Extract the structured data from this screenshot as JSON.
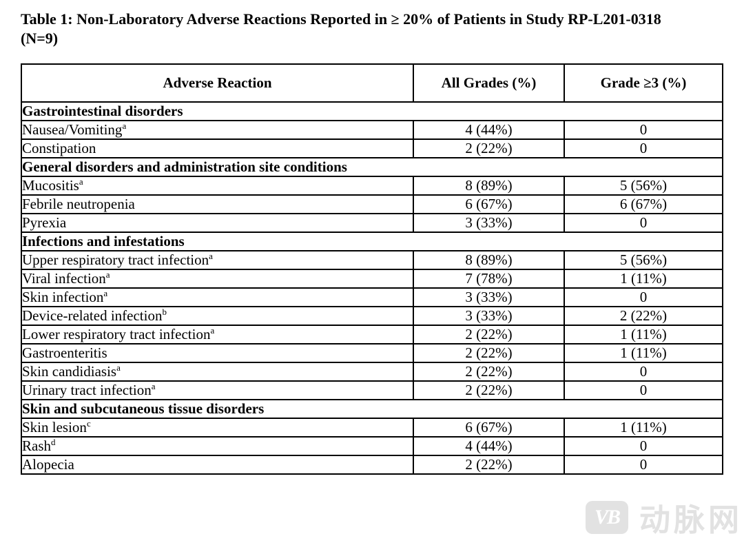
{
  "caption": {
    "line1": "Table 1: Non-Laboratory Adverse Reactions Reported in ≥ 20% of Patients in Study RP-L201-0318",
    "line2": "(N=9)"
  },
  "table": {
    "columns": [
      "Adverse Reaction",
      "All Grades (%)",
      "Grade ≥3 (%)"
    ],
    "rows": [
      {
        "type": "section",
        "label": "Gastrointestinal disorders"
      },
      {
        "type": "data",
        "label": "Nausea/Vomiting",
        "sup": "a",
        "all_grades": "4 (44%)",
        "grade_3_plus": "0"
      },
      {
        "type": "data",
        "label": "Constipation",
        "sup": "",
        "all_grades": "2 (22%)",
        "grade_3_plus": "0"
      },
      {
        "type": "section",
        "label": "General disorders and administration site conditions"
      },
      {
        "type": "data",
        "label": "Mucositis",
        "sup": "a",
        "all_grades": "8 (89%)",
        "grade_3_plus": "5 (56%)"
      },
      {
        "type": "data",
        "label": "Febrile neutropenia",
        "sup": "",
        "all_grades": "6 (67%)",
        "grade_3_plus": "6 (67%)"
      },
      {
        "type": "data",
        "label": "Pyrexia",
        "sup": "",
        "all_grades": "3 (33%)",
        "grade_3_plus": "0"
      },
      {
        "type": "section",
        "label": "Infections and infestations"
      },
      {
        "type": "data",
        "label": "Upper respiratory tract infection",
        "sup": "a",
        "all_grades": "8 (89%)",
        "grade_3_plus": "5 (56%)"
      },
      {
        "type": "data",
        "label": "Viral infection",
        "sup": "a",
        "all_grades": "7 (78%)",
        "grade_3_plus": "1 (11%)"
      },
      {
        "type": "data",
        "label": "Skin infection",
        "sup": "a",
        "all_grades": "3 (33%)",
        "grade_3_plus": "0"
      },
      {
        "type": "data",
        "label": "Device-related infection",
        "sup": "b",
        "all_grades": "3 (33%)",
        "grade_3_plus": "2 (22%)"
      },
      {
        "type": "data",
        "label": "Lower respiratory tract infection",
        "sup": "a",
        "all_grades": "2 (22%)",
        "grade_3_plus": "1 (11%)"
      },
      {
        "type": "data",
        "label": "Gastroenteritis",
        "sup": "",
        "all_grades": "2 (22%)",
        "grade_3_plus": "1 (11%)"
      },
      {
        "type": "data",
        "label": "Skin candidiasis",
        "sup": "a",
        "all_grades": "2 (22%)",
        "grade_3_plus": "0"
      },
      {
        "type": "data",
        "label": "Urinary tract infection",
        "sup": "a",
        "all_grades": "2 (22%)",
        "grade_3_plus": "0"
      },
      {
        "type": "section",
        "label": "Skin and subcutaneous tissue disorders"
      },
      {
        "type": "data",
        "label": "Skin lesion",
        "sup": "c",
        "all_grades": "6 (67%)",
        "grade_3_plus": "1 (11%)"
      },
      {
        "type": "data",
        "label": "Rash",
        "sup": "d",
        "all_grades": "4 (44%)",
        "grade_3_plus": "0"
      },
      {
        "type": "data",
        "label": "Alopecia",
        "sup": "",
        "all_grades": "2 (22%)",
        "grade_3_plus": "0"
      }
    ]
  },
  "watermark": {
    "logo_text": "VB",
    "text": "动脉网"
  },
  "colors": {
    "text": "#000000",
    "border": "#000000",
    "background": "#ffffff",
    "watermark_gray": "#e2e2e2"
  }
}
